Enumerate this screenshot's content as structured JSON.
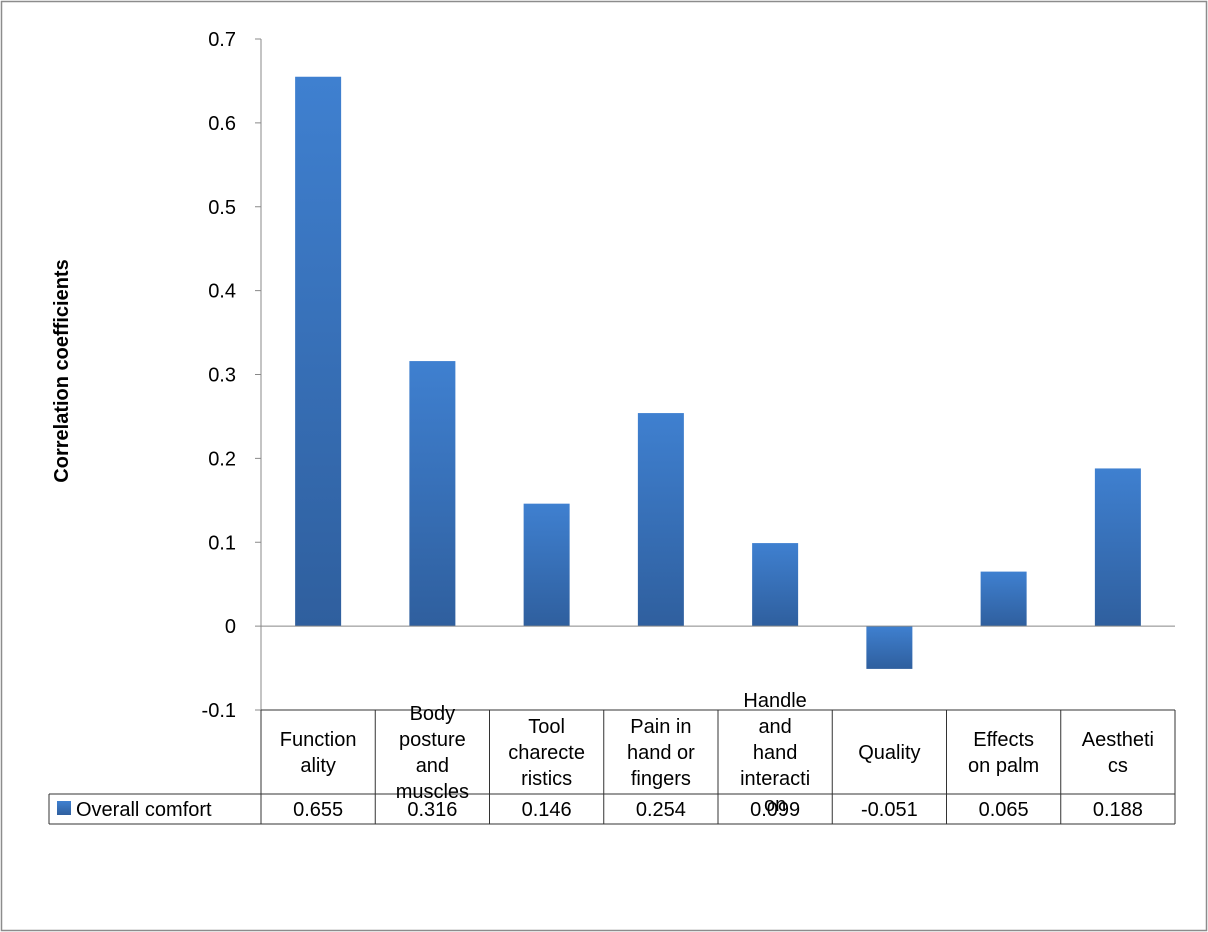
{
  "chart_data": {
    "type": "bar",
    "title": "",
    "ylabel": "Correlation coefficients",
    "xlabel": "",
    "ylim": [
      -0.1,
      0.7
    ],
    "yticks": [
      -0.1,
      0,
      0.1,
      0.2,
      0.3,
      0.4,
      0.5,
      0.6,
      0.7
    ],
    "ytick_labels": [
      "-0.1",
      "0",
      "0.1",
      "0.2",
      "0.3",
      "0.4",
      "0.5",
      "0.6",
      "0.7"
    ],
    "grid": false,
    "legend_position": "data-table",
    "categories": [
      [
        "Function",
        "ality"
      ],
      [
        "Body",
        "posture",
        "and",
        "muscles"
      ],
      [
        "Tool",
        "charecte",
        "ristics"
      ],
      [
        "Pain in",
        "hand or",
        "fingers"
      ],
      [
        "Handle",
        "and",
        "hand",
        "interacti",
        "on"
      ],
      [
        "Quality"
      ],
      [
        "Effects",
        "on palm"
      ],
      [
        "Aestheti",
        "cs"
      ]
    ],
    "series": [
      {
        "name": "Overall comfort",
        "values": [
          0.655,
          0.316,
          0.146,
          0.254,
          0.099,
          -0.051,
          0.065,
          0.188
        ],
        "value_labels": [
          "0.655",
          "0.316",
          "0.146",
          "0.254",
          "0.099",
          "-0.051",
          "0.065",
          "0.188"
        ],
        "color": "#3c76c4"
      }
    ],
    "colors": {
      "bar_light": "#3f80d0",
      "bar_dark": "#2f5f9e",
      "axis": "#888888",
      "frame": "#8c8c8c"
    }
  }
}
